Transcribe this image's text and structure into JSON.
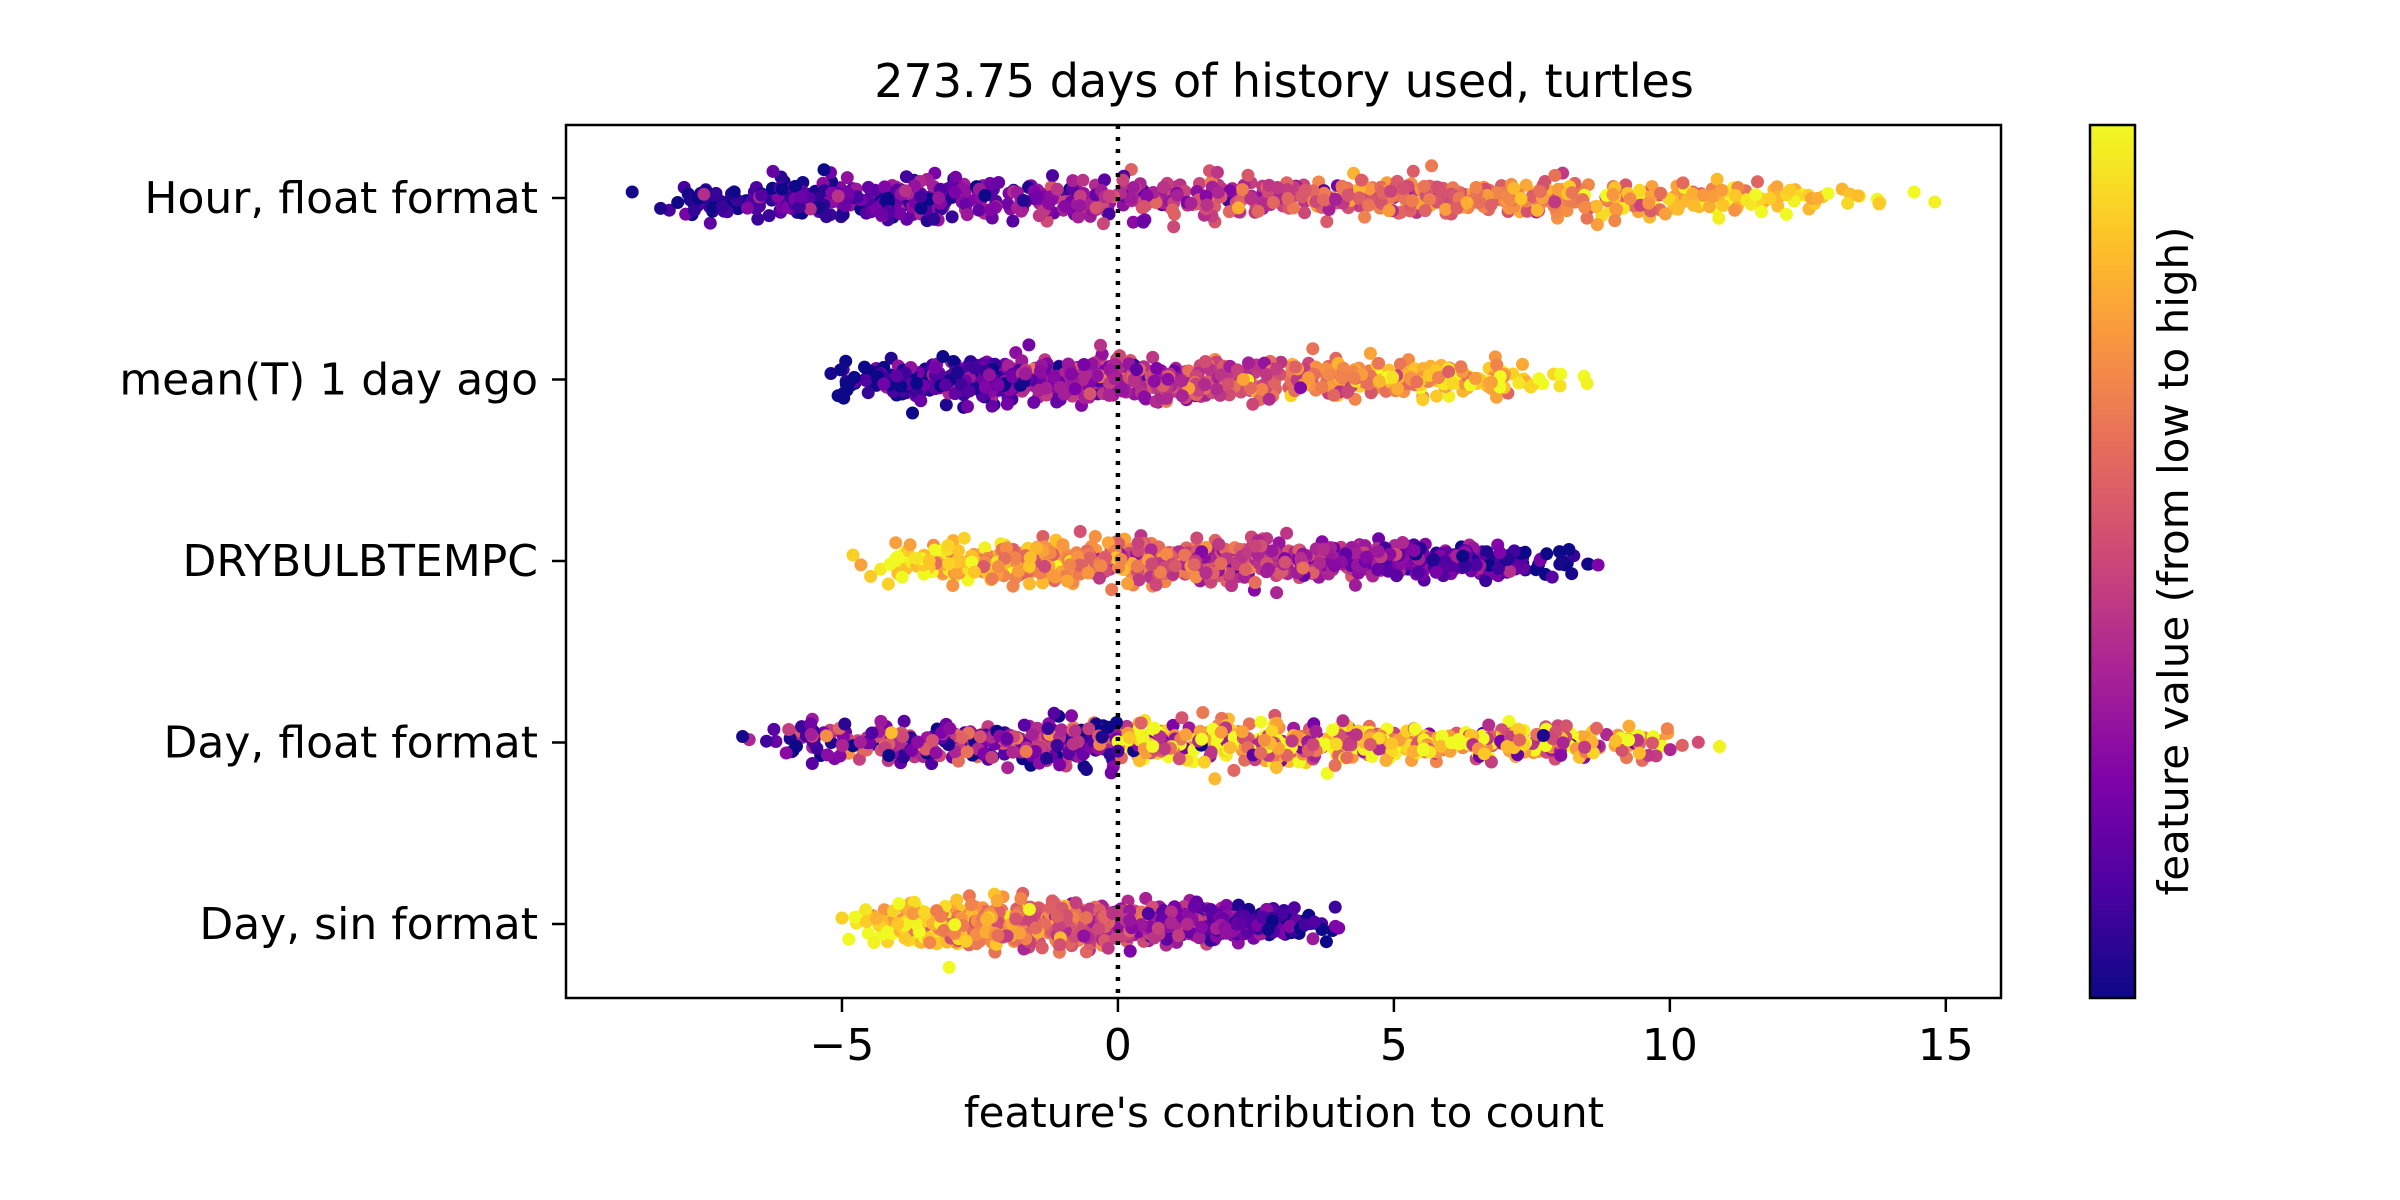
{
  "chart_data": {
    "type": "scatter",
    "subtype": "beeswarm",
    "title": "273.75 days of history used, turtles",
    "xlabel": "feature's contribution to count",
    "xlim": [
      -10,
      16
    ],
    "x_ticks": [
      -5,
      0,
      5,
      10,
      15
    ],
    "x_tick_labels": [
      "−5",
      "0",
      "5",
      "10",
      "15"
    ],
    "reference_line": {
      "x": 0,
      "style": "dotted",
      "color": "#000000"
    },
    "grid": false,
    "colormap": "plasma",
    "colorbar": {
      "label": "feature value (from low to high)",
      "low_color": "#0d0887",
      "high_color": "#f0f921"
    },
    "features": [
      {
        "name": "Hour, float format",
        "x_min": -8.8,
        "x_max": 14.8,
        "trend": "increasing"
      },
      {
        "name": "mean(T) 1 day ago",
        "x_min": -5.2,
        "x_max": 8.5,
        "trend": "increasing"
      },
      {
        "name": "DRYBULBTEMPC",
        "x_min": -4.8,
        "x_max": 8.7,
        "trend": "decreasing"
      },
      {
        "name": "Day, float format",
        "x_min": -6.8,
        "x_max": 10.9,
        "trend": "mixed"
      },
      {
        "name": "Day, sin format",
        "x_min": -5.0,
        "x_max": 4.0,
        "trend": "decreasing"
      }
    ]
  }
}
